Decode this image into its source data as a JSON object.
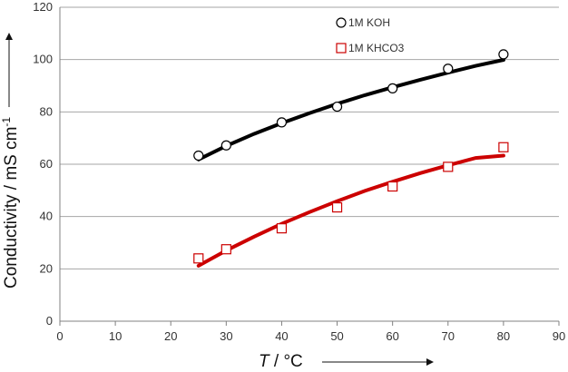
{
  "chart_data": {
    "type": "scatter",
    "xlabel_italic": "T",
    "xlabel_rest": " / °C",
    "ylabel_main": "Conductivity / mS cm",
    "ylabel_sup": "-1",
    "xlim": [
      0,
      90
    ],
    "ylim": [
      0,
      120
    ],
    "xticks": [
      "0",
      "10",
      "20",
      "30",
      "40",
      "50",
      "60",
      "70",
      "80",
      "90"
    ],
    "yticks": [
      "0",
      "20",
      "40",
      "60",
      "80",
      "100",
      "120"
    ],
    "grid": "horizontal",
    "legend_position": "top",
    "series": [
      {
        "name": "1M KOH",
        "marker": "circle",
        "color": "#000000",
        "x": [
          25,
          30,
          40,
          50,
          60,
          70,
          80
        ],
        "y": [
          63.3,
          67.2,
          76,
          82,
          89,
          96.5,
          102
        ],
        "fit_x": [
          25,
          30,
          35,
          40,
          45,
          50,
          55,
          60,
          65,
          70,
          75,
          80
        ],
        "fit_y": [
          61.8,
          67.0,
          71.6,
          75.7,
          79.5,
          83.1,
          86.4,
          89.4,
          92.3,
          95.0,
          97.6,
          99.9
        ]
      },
      {
        "name": "1M KHCO3",
        "marker": "square",
        "color": "#cc0000",
        "x": [
          25,
          30,
          40,
          50,
          60,
          70,
          80
        ],
        "y": [
          24,
          27.5,
          35.5,
          43.5,
          51.5,
          59,
          66.5
        ],
        "fit_x": [
          25,
          30,
          35,
          40,
          45,
          50,
          55,
          60,
          65,
          70,
          75,
          80
        ],
        "fit_y": [
          21.2,
          27.0,
          32.3,
          37.2,
          41.7,
          45.9,
          49.8,
          53.3,
          56.6,
          59.6,
          62.4,
          63.3
        ]
      }
    ]
  }
}
